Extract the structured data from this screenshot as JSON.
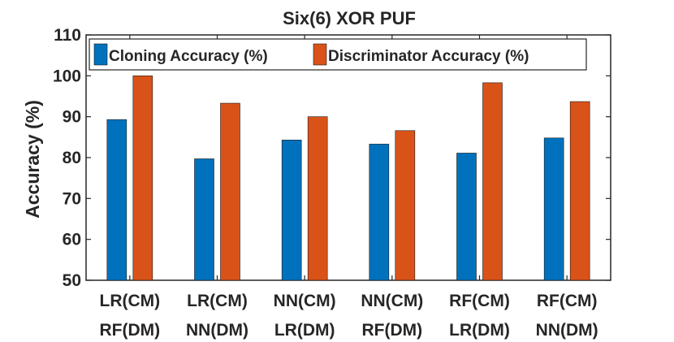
{
  "chart_data": {
    "type": "bar",
    "title": "Six(6) XOR PUF",
    "xlabel": "",
    "ylabel": "Accuracy (%)",
    "ylim": [
      50,
      110
    ],
    "yticks": [
      50,
      60,
      70,
      80,
      90,
      100,
      110
    ],
    "categories": [
      [
        "LR(CM)",
        "RF(DM)"
      ],
      [
        "LR(CM)",
        "NN(DM)"
      ],
      [
        "NN(CM)",
        "LR(DM)"
      ],
      [
        "NN(CM)",
        "RF(DM)"
      ],
      [
        "RF(CM)",
        "LR(DM)"
      ],
      [
        "RF(CM)",
        "NN(DM)"
      ]
    ],
    "series": [
      {
        "name": "Cloning Accuracy (%)",
        "color": "#0072BD",
        "values": [
          89.3,
          79.7,
          84.3,
          83.3,
          81.1,
          84.8
        ]
      },
      {
        "name": "Discriminator Accuracy (%)",
        "color": "#D95319",
        "values": [
          100.0,
          93.3,
          90.0,
          86.6,
          98.3,
          93.7
        ]
      }
    ],
    "legend": "top-left, horizontal",
    "grid": false
  }
}
